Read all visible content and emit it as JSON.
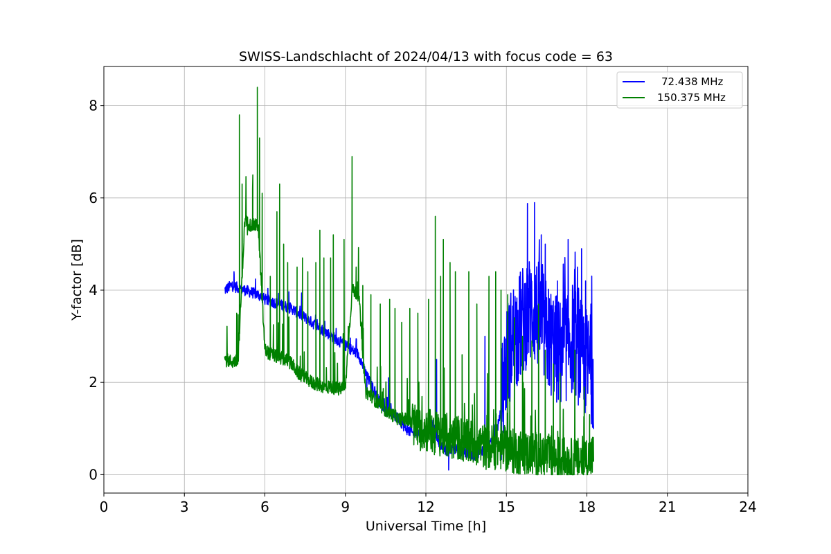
{
  "chart_data": {
    "type": "line",
    "title": "SWISS-Landschlacht of 2024/04/13 with focus code = 63",
    "xlabel": "Universal Time [h]",
    "ylabel": "Y-factor [dB]",
    "xlim": [
      0,
      24
    ],
    "ylim": [
      -0.4,
      8.85
    ],
    "x_ticks": [
      0,
      3,
      6,
      9,
      12,
      15,
      18,
      21,
      24
    ],
    "y_ticks": [
      0,
      2,
      4,
      6,
      8
    ],
    "grid": true,
    "legend_position": "upper right",
    "series": [
      {
        "name": "72.438 MHz",
        "color": "#0000ff",
        "x": [
          4.5,
          4.75,
          5.0,
          5.25,
          5.5,
          5.75,
          6.0,
          6.25,
          6.5,
          6.75,
          7.0,
          7.25,
          7.5,
          7.75,
          8.0,
          8.25,
          8.5,
          8.75,
          9.0,
          9.25,
          9.5,
          9.75,
          10.0,
          10.25,
          10.5,
          10.75,
          11.0,
          11.25,
          11.5,
          11.75,
          12.0,
          12.25,
          12.5,
          12.75,
          13.0,
          13.25,
          13.5,
          13.75,
          14.0,
          14.25,
          14.5,
          14.75,
          15.0,
          15.25,
          15.5,
          15.75,
          16.0,
          16.25,
          16.5,
          16.75,
          17.0,
          17.25,
          17.5,
          17.75,
          18.0,
          18.25
        ],
        "y": [
          4.0,
          4.1,
          4.05,
          4.0,
          3.95,
          3.9,
          3.8,
          3.75,
          3.7,
          3.65,
          3.6,
          3.5,
          3.4,
          3.3,
          3.2,
          3.1,
          3.0,
          2.9,
          2.8,
          2.7,
          2.6,
          2.2,
          1.9,
          1.6,
          1.4,
          1.3,
          1.2,
          1.0,
          0.9,
          0.9,
          0.9,
          1.1,
          0.7,
          0.5,
          0.6,
          0.5,
          0.5,
          0.4,
          0.5,
          0.6,
          0.7,
          1.2,
          2.5,
          3.0,
          3.2,
          3.5,
          3.6,
          3.4,
          3.0,
          2.8,
          2.6,
          2.8,
          3.0,
          2.6,
          2.4,
          2.2
        ],
        "spikes": [
          [
            4.85,
            4.4
          ],
          [
            9.8,
            1.8
          ],
          [
            10.6,
            2.1
          ],
          [
            12.4,
            2.5
          ],
          [
            12.85,
            0.1
          ],
          [
            14.2,
            3.0
          ],
          [
            15.5,
            4.3
          ],
          [
            15.8,
            4.3
          ],
          [
            16.05,
            5.9
          ],
          [
            16.3,
            5.2
          ],
          [
            16.45,
            5.0
          ],
          [
            16.9,
            4.2
          ],
          [
            17.05,
            3.2
          ],
          [
            17.3,
            5.1
          ],
          [
            17.65,
            4.5
          ],
          [
            17.8,
            4.9
          ],
          [
            17.95,
            4.2
          ],
          [
            18.15,
            3.7
          ]
        ]
      },
      {
        "name": "150.375 MHz",
        "color": "#008000",
        "x": [
          4.5,
          4.75,
          5.0,
          5.25,
          5.5,
          5.75,
          6.0,
          6.25,
          6.5,
          6.75,
          7.0,
          7.25,
          7.5,
          7.75,
          8.0,
          8.25,
          8.5,
          8.75,
          9.0,
          9.25,
          9.5,
          9.75,
          10.0,
          10.25,
          10.5,
          10.75,
          11.0,
          11.25,
          11.5,
          11.75,
          12.0,
          12.25,
          12.5,
          12.75,
          13.0,
          13.25,
          13.5,
          13.75,
          14.0,
          14.25,
          14.5,
          14.75,
          15.0,
          15.25,
          15.5,
          15.75,
          16.0,
          16.25,
          16.5,
          16.75,
          17.0,
          17.25,
          17.5,
          17.75,
          18.0,
          18.25
        ],
        "y": [
          2.5,
          2.45,
          2.45,
          5.5,
          5.4,
          5.4,
          2.7,
          2.6,
          2.55,
          2.5,
          2.4,
          2.2,
          2.1,
          2.0,
          1.95,
          1.9,
          1.9,
          1.85,
          1.9,
          4.0,
          3.9,
          1.8,
          1.7,
          1.5,
          1.4,
          1.3,
          1.2,
          1.2,
          1.1,
          1.0,
          1.0,
          0.9,
          0.9,
          0.85,
          0.8,
          0.8,
          0.7,
          0.7,
          0.65,
          0.6,
          0.6,
          0.6,
          0.55,
          0.5,
          0.5,
          0.45,
          0.45,
          0.4,
          0.4,
          0.35,
          0.35,
          0.3,
          0.3,
          0.3,
          0.35,
          0.4
        ],
        "spikes": [
          [
            4.95,
            3.5
          ],
          [
            5.05,
            7.8
          ],
          [
            5.15,
            6.3
          ],
          [
            5.35,
            5.2
          ],
          [
            5.55,
            6.5
          ],
          [
            5.72,
            8.4
          ],
          [
            5.8,
            7.3
          ],
          [
            5.9,
            6.1
          ],
          [
            6.2,
            4.3
          ],
          [
            6.45,
            5.7
          ],
          [
            6.55,
            6.3
          ],
          [
            6.7,
            5.0
          ],
          [
            6.85,
            4.6
          ],
          [
            7.2,
            4.5
          ],
          [
            7.4,
            4.7
          ],
          [
            7.6,
            4.4
          ],
          [
            7.9,
            4.6
          ],
          [
            8.05,
            5.3
          ],
          [
            8.2,
            4.7
          ],
          [
            8.45,
            4.7
          ],
          [
            8.55,
            5.2
          ],
          [
            8.95,
            5.1
          ],
          [
            9.25,
            6.9
          ],
          [
            9.4,
            4.5
          ],
          [
            9.65,
            4.1
          ],
          [
            9.95,
            3.9
          ],
          [
            10.3,
            3.7
          ],
          [
            10.65,
            3.8
          ],
          [
            10.85,
            3.6
          ],
          [
            11.1,
            3.3
          ],
          [
            11.4,
            3.6
          ],
          [
            11.7,
            3.5
          ],
          [
            12.1,
            3.8
          ],
          [
            12.35,
            5.6
          ],
          [
            12.55,
            4.3
          ],
          [
            12.65,
            5.1
          ],
          [
            12.9,
            4.6
          ],
          [
            13.1,
            4.4
          ],
          [
            13.35,
            2.6
          ],
          [
            13.6,
            4.4
          ],
          [
            13.9,
            3.7
          ],
          [
            14.35,
            4.3
          ],
          [
            14.6,
            4.4
          ],
          [
            14.8,
            4.0
          ],
          [
            15.05,
            3.9
          ],
          [
            15.3,
            3.4
          ],
          [
            15.6,
            3.0
          ],
          [
            15.95,
            2.9
          ],
          [
            16.2,
            3.7
          ],
          [
            16.45,
            2.7
          ],
          [
            16.75,
            2.4
          ],
          [
            17.0,
            2.2
          ],
          [
            17.55,
            2.7
          ],
          [
            17.9,
            1.9
          ],
          [
            18.1,
            1.3
          ]
        ]
      }
    ]
  }
}
